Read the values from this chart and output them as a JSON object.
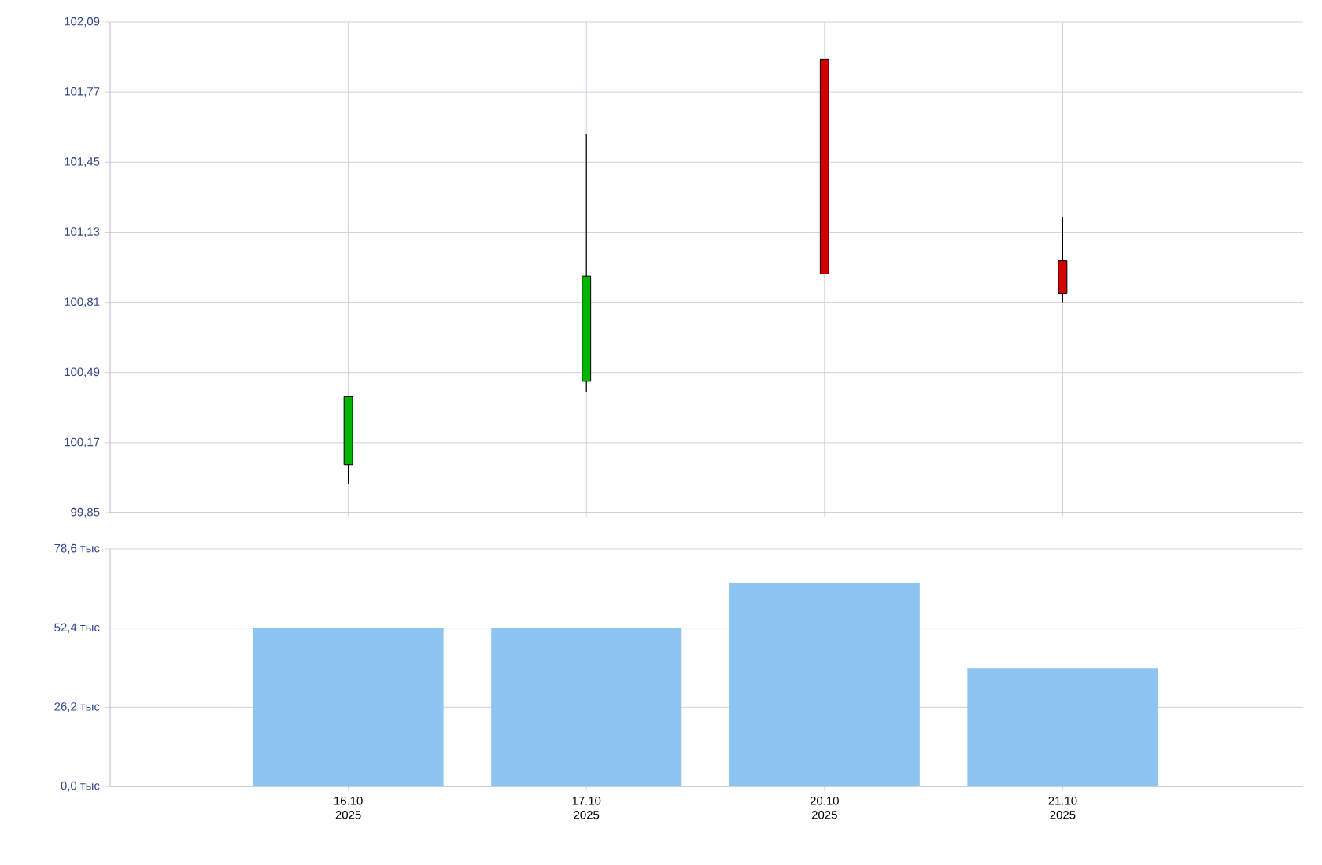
{
  "chart_data": [
    {
      "type": "candlestick",
      "categories": [
        null,
        null,
        null,
        null
      ],
      "ohlc": [
        [
          100.07,
          100.38,
          99.98,
          100.38
        ],
        [
          100.45,
          101.58,
          100.4,
          100.93
        ],
        [
          101.92,
          101.92,
          100.94,
          100.94
        ],
        [
          101.0,
          101.2,
          100.81,
          100.85
        ]
      ],
      "colors": [
        "#00b400",
        "#00b400",
        "#d40000",
        "#d40000"
      ],
      "ylim": [
        99.85,
        102.09
      ],
      "yticks": [
        {
          "value": 99.85,
          "label": "99,85"
        },
        {
          "value": 100.17,
          "label": "100,17"
        },
        {
          "value": 100.49,
          "label": "100,49"
        },
        {
          "value": 100.81,
          "label": "100,81"
        },
        {
          "value": 101.13,
          "label": "101,13"
        },
        {
          "value": 101.45,
          "label": "101,45"
        },
        {
          "value": 101.77,
          "label": "101,77"
        },
        {
          "value": 102.09,
          "label": "102,09"
        }
      ],
      "grid": true
    },
    {
      "type": "bar",
      "categories": [
        "16.10 2025",
        "17.10 2025",
        "20.10 2025",
        "21.10 2025"
      ],
      "values": [
        52.4,
        52.4,
        67.2,
        39.0
      ],
      "color": "#8cc5f2",
      "ylim": [
        0,
        78.6
      ],
      "yticks": [
        {
          "value": 0,
          "label": "0,0 тыс"
        },
        {
          "value": 26.2,
          "label": "26,2 тыс"
        },
        {
          "value": 52.4,
          "label": "52,4 тыс"
        },
        {
          "value": 78.6,
          "label": "78,6 тыс"
        }
      ],
      "grid": "y"
    }
  ]
}
